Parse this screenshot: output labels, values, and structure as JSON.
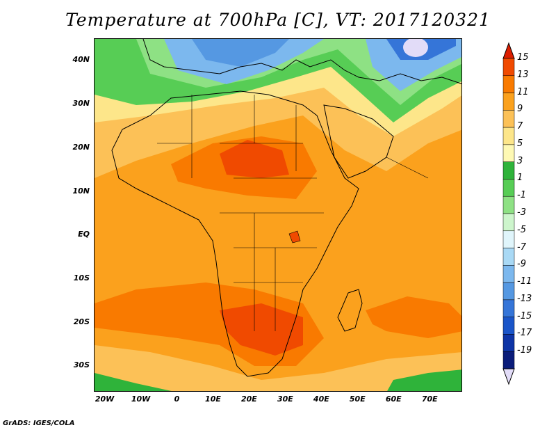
{
  "title": "Temperature at 700hPa [C], VT: 2017120321",
  "footer": "GrADS: IGES/COLA",
  "map": {
    "lon_range": [
      -23,
      79
    ],
    "lat_range": [
      -36,
      45
    ],
    "lat_ticks": [
      {
        "value": 40,
        "label": "40N"
      },
      {
        "value": 30,
        "label": "30N"
      },
      {
        "value": 20,
        "label": "20N"
      },
      {
        "value": 10,
        "label": "10N"
      },
      {
        "value": 0,
        "label": "EQ"
      },
      {
        "value": -10,
        "label": "10S"
      },
      {
        "value": -20,
        "label": "20S"
      },
      {
        "value": -30,
        "label": "30S"
      }
    ],
    "lon_ticks": [
      {
        "value": -20,
        "label": "20W"
      },
      {
        "value": -10,
        "label": "10W"
      },
      {
        "value": 0,
        "label": "0"
      },
      {
        "value": 10,
        "label": "10E"
      },
      {
        "value": 20,
        "label": "20E"
      },
      {
        "value": 30,
        "label": "30E"
      },
      {
        "value": 40,
        "label": "40E"
      },
      {
        "value": 50,
        "label": "50E"
      },
      {
        "value": 60,
        "label": "60E"
      },
      {
        "value": 70,
        "label": "70E"
      }
    ]
  },
  "colorbar": {
    "labels": [
      "15",
      "13",
      "11",
      "9",
      "7",
      "5",
      "3",
      "1",
      "-1",
      "-3",
      "-5",
      "-7",
      "-9",
      "-11",
      "-13",
      "-15",
      "-17",
      "-19"
    ],
    "colors": [
      "#dc1e00",
      "#f04a00",
      "#f97a00",
      "#fba11d",
      "#fcc157",
      "#fde68a",
      "#fef9b4",
      "#2fb33a",
      "#57cd55",
      "#8ee184",
      "#cdf5cc",
      "#e0f5fb",
      "#a9d9f5",
      "#7cb8ee",
      "#5598e2",
      "#3575d8",
      "#1a55c9",
      "#0d34a6",
      "#0a1c7a",
      "#e2dcf8"
    ]
  },
  "regions": [
    {
      "name": "north-green",
      "color": "#57cd55"
    },
    {
      "name": "europe-blue",
      "color": "#7cb8ee"
    },
    {
      "name": "sahara-yellow",
      "color": "#fde68a"
    },
    {
      "name": "tropical-orange",
      "color": "#fba11d"
    },
    {
      "name": "sahel-hot",
      "color": "#f97a00"
    },
    {
      "name": "southern-hot",
      "color": "#f04a00"
    },
    {
      "name": "south-yellow",
      "color": "#fcc157"
    },
    {
      "name": "south-green",
      "color": "#2fb33a"
    }
  ]
}
